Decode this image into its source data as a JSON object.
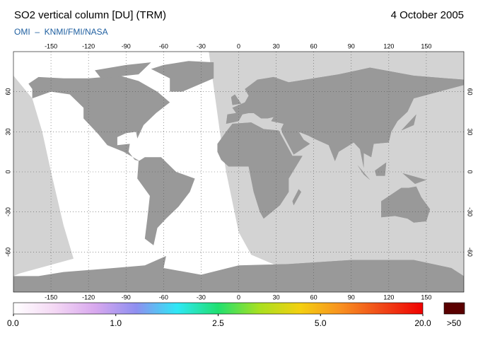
{
  "header": {
    "title": "SO2 vertical column [DU] (TRM)",
    "date": "4 October 2005",
    "credit": "OMI  –  KNMI/FMI/NASA"
  },
  "map": {
    "lon_range": [
      -180,
      180
    ],
    "lat_range": [
      -90,
      90
    ],
    "lon_ticks": [
      -150,
      -120,
      -90,
      -60,
      -30,
      0,
      30,
      60,
      90,
      120,
      150
    ],
    "lat_ticks": [
      -60,
      -30,
      0,
      30,
      60
    ],
    "grid": true
  },
  "colorbar": {
    "labels": [
      {
        "value": 0,
        "label": "0.0"
      },
      {
        "value": 1,
        "label": "1.0"
      },
      {
        "value": 2.5,
        "label": "2.5"
      },
      {
        "value": 5,
        "label": "5.0"
      },
      {
        "value": 20,
        "label": "20.0"
      }
    ],
    "colors": [
      "#ffffff",
      "#f4d8f4",
      "#d8a8ee",
      "#8f8ff0",
      "#2ee8f6",
      "#20e070",
      "#a8e020",
      "#f4d010",
      "#f89020",
      "#f04818",
      "#f00000"
    ],
    "overflow_label": ">50",
    "overflow_color": "#5a0000"
  }
}
